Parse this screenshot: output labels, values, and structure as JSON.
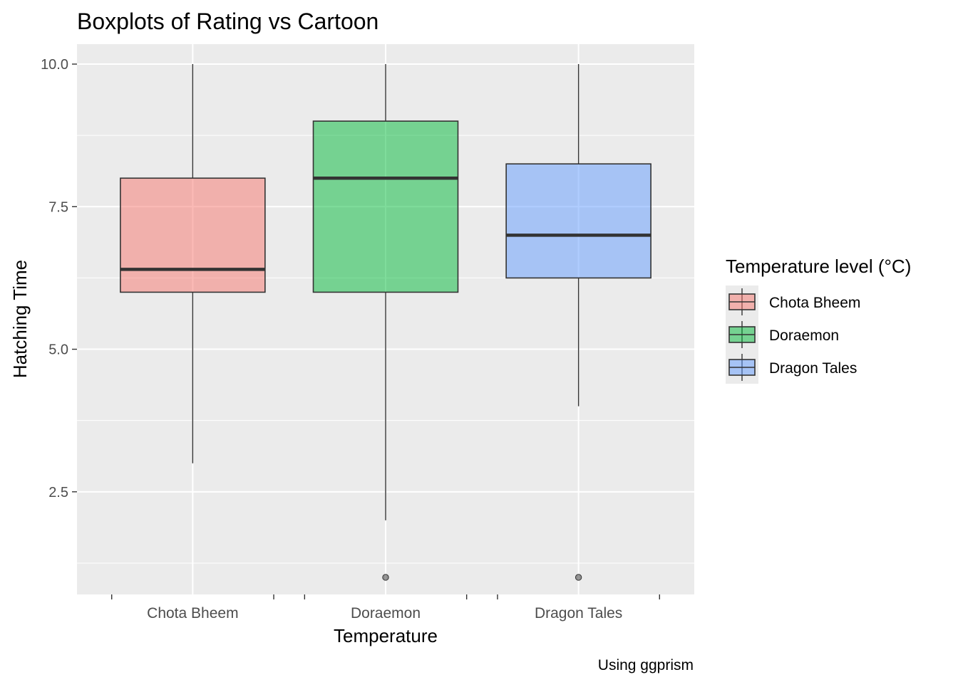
{
  "chart_data": {
    "type": "boxplot",
    "title": "Boxplots of Rating vs Cartoon",
    "xlabel": "Temperature",
    "ylabel": "Hatching Time",
    "caption": "Using ggprism",
    "ylim": [
      0.7,
      10.35
    ],
    "yticks": [
      2.5,
      5.0,
      7.5,
      10.0
    ],
    "ytick_labels": [
      "2.5",
      "5.0",
      "7.5",
      "10.0"
    ],
    "categories": [
      "Chota Bheem",
      "Doraemon",
      "Dragon Tales"
    ],
    "boxes": [
      {
        "name": "Chota Bheem",
        "min": 3,
        "q1": 6,
        "median": 6.4,
        "q3": 8,
        "max": 10,
        "outliers": [],
        "color": "#F8766D"
      },
      {
        "name": "Doraemon",
        "min": 2,
        "q1": 6,
        "median": 8,
        "q3": 9,
        "max": 10,
        "outliers": [
          1
        ],
        "color": "#00BA38"
      },
      {
        "name": "Dragon Tales",
        "min": 4,
        "q1": 6.25,
        "median": 7,
        "q3": 8.25,
        "max": 10,
        "outliers": [
          1
        ],
        "color": "#619CFF"
      }
    ],
    "legend": {
      "title": "Temperature level (°C)",
      "position": "right",
      "items": [
        "Chota Bheem",
        "Doraemon",
        "Dragon Tales"
      ]
    },
    "grid": true,
    "panel_background": "#EBEBEB",
    "fill_alpha": 0.5
  }
}
